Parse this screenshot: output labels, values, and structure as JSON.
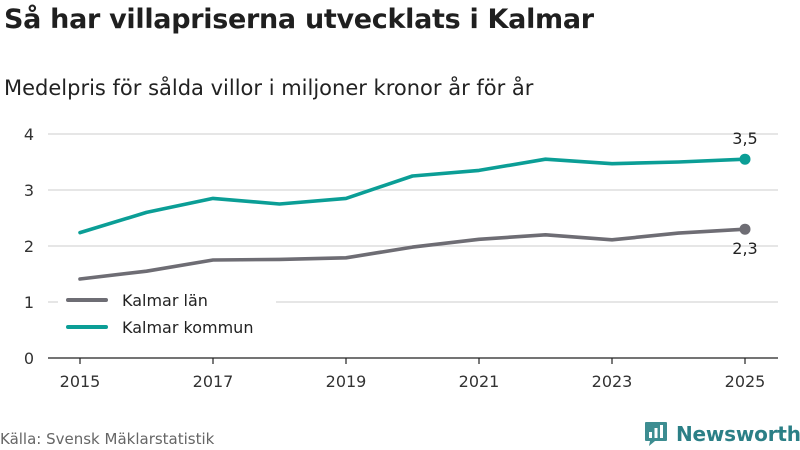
{
  "header": {
    "title": "Så har villapriserna utvecklats i Kalmar",
    "subtitle": "Medelpris för sålda villor i miljoner kronor år för år"
  },
  "footer": {
    "source": "Källa: Svensk Mäklarstatistik",
    "brand": "Newsworthy",
    "brand_icon": "chart-bubble-icon"
  },
  "colors": {
    "kommun": "#0b9e96",
    "lan": "#6e6d74",
    "grid": "#d6d6d6",
    "brand": "#2b7f86"
  },
  "chart_data": {
    "type": "line",
    "title": "Så har villapriserna utvecklats i Kalmar",
    "subtitle": "Medelpris för sålda villor i miljoner kronor år för år",
    "xlabel": "",
    "ylabel": "",
    "x": [
      2015,
      2016,
      2017,
      2018,
      2019,
      2020,
      2021,
      2022,
      2023,
      2024,
      2025
    ],
    "xticks": [
      "2015",
      "2017",
      "2019",
      "2021",
      "2023",
      "2025"
    ],
    "yticks": [
      "0",
      "1",
      "2",
      "3",
      "4"
    ],
    "ylim": [
      0,
      4.3
    ],
    "grid": true,
    "legend_position": "lower-left",
    "series": [
      {
        "name": "Kalmar län",
        "key": "lan",
        "values": [
          1.41,
          1.55,
          1.75,
          1.76,
          1.79,
          1.98,
          2.12,
          2.2,
          2.11,
          2.23,
          2.3
        ],
        "end_label": "2,3"
      },
      {
        "name": "Kalmar kommun",
        "key": "kommun",
        "values": [
          2.24,
          2.6,
          2.85,
          2.75,
          2.85,
          3.25,
          3.35,
          3.55,
          3.47,
          3.5,
          3.55
        ],
        "end_label": "3,5"
      }
    ]
  }
}
